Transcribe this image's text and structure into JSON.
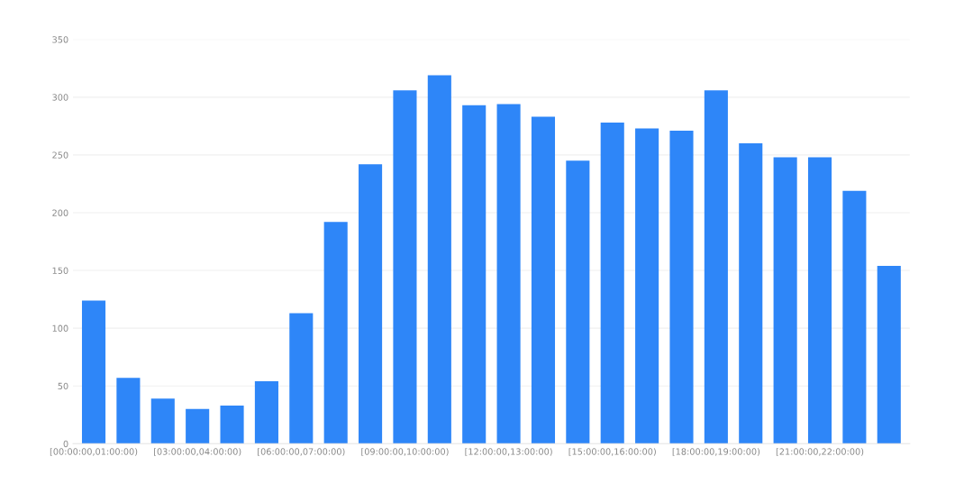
{
  "chart_data": {
    "type": "bar",
    "categories": [
      "[00:00:00,01:00:00)",
      null,
      null,
      "[03:00:00,04:00:00)",
      null,
      null,
      "[06:00:00,07:00:00)",
      null,
      null,
      "[09:00:00,10:00:00)",
      null,
      null,
      "[12:00:00,13:00:00)",
      null,
      null,
      "[15:00:00,16:00:00)",
      null,
      null,
      "[18:00:00,19:00:00)",
      null,
      null,
      "[21:00:00,22:00:00)",
      null,
      null
    ],
    "values": [
      124,
      57,
      39,
      30,
      33,
      54,
      113,
      192,
      242,
      306,
      319,
      293,
      294,
      283,
      245,
      278,
      273,
      271,
      306,
      260,
      248,
      248,
      219,
      154
    ],
    "color": "#2e86f8",
    "ylim": [
      0,
      350
    ],
    "yticks": [
      0,
      50,
      100,
      150,
      200,
      250,
      300,
      350
    ],
    "grid": "y"
  }
}
